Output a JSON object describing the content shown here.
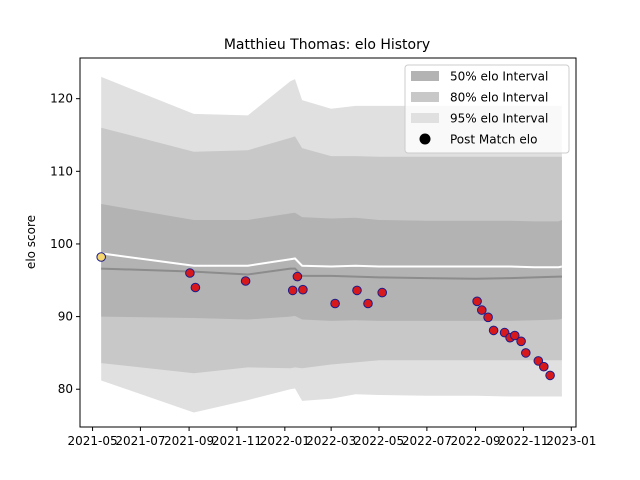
{
  "chart_data": {
    "type": "line",
    "title": "Matthieu Thomas: elo History",
    "xlabel": "",
    "ylabel": "elo score",
    "xlim": [
      "2021-04-15",
      "2023-01-07"
    ],
    "ylim": [
      74.8,
      125.6
    ],
    "x_ticks": [
      "2021-05-01",
      "2021-07-01",
      "2021-09-01",
      "2021-11-01",
      "2022-01-01",
      "2022-03-01",
      "2022-05-01",
      "2022-07-01",
      "2022-09-01",
      "2022-11-01",
      "2023-01-01"
    ],
    "x_tick_labels": [
      "2021-05",
      "2021-07",
      "2021-09",
      "2021-11",
      "2022-01",
      "2022-03",
      "2022-05",
      "2022-07",
      "2022-09",
      "2022-11",
      "2023-01"
    ],
    "y_ticks": [
      80,
      90,
      100,
      110,
      120
    ],
    "grid": false,
    "legend_position": "top-right",
    "legend": [
      {
        "label": "50% elo Interval",
        "kind": "band",
        "color": "#b3b3b3"
      },
      {
        "label": "80% elo Interval",
        "kind": "band",
        "color": "#c8c8c8"
      },
      {
        "label": "95% elo Interval",
        "kind": "band",
        "color": "#e0e0e0"
      },
      {
        "label": "Post Match elo",
        "kind": "marker",
        "color": "#000000"
      }
    ],
    "colors": {
      "band50": "#b3b3b3",
      "band80": "#c8c8c8",
      "band95": "#e0e0e0",
      "mean_line": "#ffffff",
      "median_line": "#8c8c8c",
      "marker_fill": "#d7191c",
      "marker_edge": "#1c1c8c",
      "first_marker_fill": "#f5d76e"
    },
    "bands": {
      "x": [
        "2021-05-12",
        "2021-09-07",
        "2021-11-15",
        "2022-01-08",
        "2022-01-14",
        "2022-01-23",
        "2022-03-01",
        "2022-04-01",
        "2022-05-01",
        "2022-07-01",
        "2022-09-01",
        "2022-10-15",
        "2022-11-15",
        "2022-12-16",
        "2022-12-20"
      ],
      "p95_low": [
        81.2,
        76.8,
        78.5,
        80.0,
        80.1,
        78.4,
        78.7,
        79.3,
        79.2,
        79.1,
        79.1,
        79.0,
        79.0,
        79.0,
        79.0
      ],
      "p95_high": [
        123.0,
        117.9,
        117.7,
        122.4,
        122.7,
        119.8,
        118.6,
        119.0,
        119.0,
        119.0,
        119.0,
        119.0,
        119.0,
        119.0,
        119.0
      ],
      "p80_low": [
        83.6,
        82.2,
        83.0,
        82.9,
        83.0,
        82.9,
        83.4,
        83.7,
        84.0,
        84.0,
        84.0,
        84.0,
        84.0,
        84.0,
        84.0
      ],
      "p80_high": [
        116.0,
        112.7,
        112.9,
        114.6,
        114.8,
        113.2,
        112.1,
        112.1,
        112.0,
        112.0,
        112.0,
        112.0,
        112.0,
        112.0,
        112.0
      ],
      "p50_low": [
        90.0,
        89.8,
        89.6,
        90.0,
        90.1,
        89.6,
        89.4,
        89.5,
        89.4,
        89.4,
        89.4,
        89.4,
        89.5,
        89.6,
        89.7
      ],
      "p50_high": [
        105.5,
        103.3,
        103.3,
        104.2,
        104.3,
        103.7,
        103.5,
        103.6,
        103.3,
        103.2,
        103.2,
        103.2,
        103.1,
        103.1,
        103.3
      ],
      "mean": [
        98.7,
        97.0,
        97.0,
        97.9,
        98.0,
        97.0,
        96.9,
        97.0,
        96.9,
        96.9,
        96.9,
        96.9,
        96.8,
        96.8,
        96.9
      ],
      "median": [
        96.6,
        96.2,
        95.8,
        96.6,
        96.6,
        95.6,
        95.6,
        95.5,
        95.4,
        95.3,
        95.2,
        95.3,
        95.4,
        95.5,
        95.5
      ]
    },
    "series": [
      {
        "name": "Post Match elo",
        "points": [
          {
            "x": "2021-05-12",
            "y": 98.2
          },
          {
            "x": "2021-09-02",
            "y": 96.0
          },
          {
            "x": "2021-09-09",
            "y": 94.0
          },
          {
            "x": "2021-11-12",
            "y": 94.9
          },
          {
            "x": "2022-01-11",
            "y": 93.6
          },
          {
            "x": "2022-01-17",
            "y": 95.5
          },
          {
            "x": "2022-01-24",
            "y": 93.7
          },
          {
            "x": "2022-03-06",
            "y": 91.8
          },
          {
            "x": "2022-04-03",
            "y": 93.6
          },
          {
            "x": "2022-04-17",
            "y": 91.8
          },
          {
            "x": "2022-05-05",
            "y": 93.3
          },
          {
            "x": "2022-09-03",
            "y": 92.1
          },
          {
            "x": "2022-09-09",
            "y": 90.9
          },
          {
            "x": "2022-09-17",
            "y": 89.9
          },
          {
            "x": "2022-09-24",
            "y": 88.1
          },
          {
            "x": "2022-10-08",
            "y": 87.8
          },
          {
            "x": "2022-10-15",
            "y": 87.1
          },
          {
            "x": "2022-10-21",
            "y": 87.4
          },
          {
            "x": "2022-10-29",
            "y": 86.6
          },
          {
            "x": "2022-11-04",
            "y": 85.0
          },
          {
            "x": "2022-11-20",
            "y": 83.9
          },
          {
            "x": "2022-11-27",
            "y": 83.1
          },
          {
            "x": "2022-12-05",
            "y": 81.9
          }
        ]
      }
    ]
  }
}
